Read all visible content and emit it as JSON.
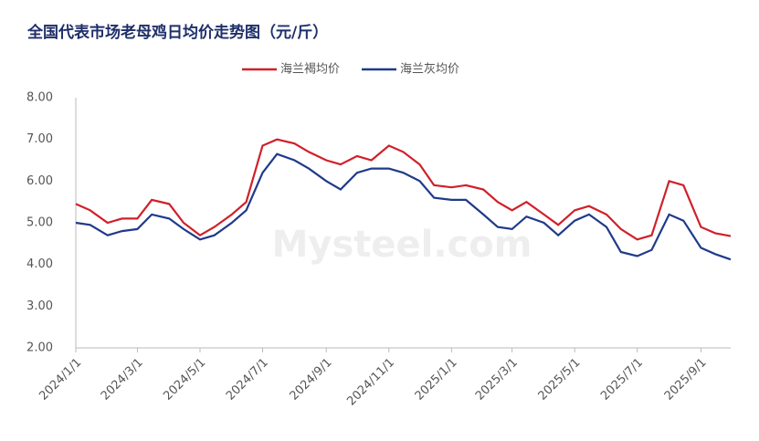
{
  "chart_data": {
    "type": "line",
    "title": "全国代表市场老母鸡日均价走势图（元/斤）",
    "watermark": "Mysteel.com",
    "x": [
      "2024/1/1",
      "2024/1/15",
      "2024/2/1",
      "2024/2/15",
      "2024/3/1",
      "2024/3/15",
      "2024/4/1",
      "2024/4/15",
      "2024/5/1",
      "2024/5/15",
      "2024/6/1",
      "2024/6/15",
      "2024/7/1",
      "2024/7/15",
      "2024/8/1",
      "2024/8/15",
      "2024/9/1",
      "2024/9/15",
      "2024/10/1",
      "2024/10/15",
      "2024/11/1",
      "2024/11/15",
      "2024/12/1",
      "2024/12/15",
      "2025/1/1",
      "2025/1/15",
      "2025/2/1",
      "2025/2/15",
      "2025/3/1",
      "2025/3/15",
      "2025/4/1",
      "2025/4/15",
      "2025/5/1",
      "2025/5/15",
      "2025/6/1",
      "2025/6/15",
      "2025/7/1",
      "2025/7/15",
      "2025/8/1",
      "2025/8/15",
      "2025/9/1",
      "2025/9/15",
      "2025/9/30"
    ],
    "series": [
      {
        "name": "海兰褐均价",
        "color": "#d0202a",
        "values": [
          5.45,
          5.3,
          5.0,
          5.1,
          5.1,
          5.55,
          5.45,
          5.0,
          4.7,
          4.9,
          5.2,
          5.5,
          6.85,
          7.0,
          6.9,
          6.7,
          6.5,
          6.4,
          6.6,
          6.5,
          6.85,
          6.7,
          6.4,
          5.9,
          5.85,
          5.9,
          5.8,
          5.5,
          5.3,
          5.5,
          5.2,
          4.95,
          5.3,
          5.4,
          5.2,
          4.85,
          4.6,
          4.7,
          6.0,
          5.9,
          4.9,
          4.75,
          4.68
        ]
      },
      {
        "name": "海兰灰均价",
        "color": "#1f3a8a",
        "values": [
          5.0,
          4.95,
          4.7,
          4.8,
          4.85,
          5.2,
          5.1,
          4.85,
          4.6,
          4.7,
          5.0,
          5.3,
          6.2,
          6.65,
          6.5,
          6.3,
          6.0,
          5.8,
          6.2,
          6.3,
          6.3,
          6.2,
          6.0,
          5.6,
          5.55,
          5.55,
          5.2,
          4.9,
          4.85,
          5.15,
          5.0,
          4.7,
          5.05,
          5.2,
          4.9,
          4.3,
          4.2,
          4.35,
          5.2,
          5.05,
          4.4,
          4.25,
          4.12
        ]
      }
    ],
    "xlim": [
      "2024/1/1",
      "2025/9/30"
    ],
    "xticks": [
      "2024/1/1",
      "2024/3/1",
      "2024/5/1",
      "2024/7/1",
      "2024/9/1",
      "2024/11/1",
      "2025/1/1",
      "2025/3/1",
      "2025/5/1",
      "2025/7/1",
      "2025/9/1"
    ],
    "ylim": [
      2,
      8
    ],
    "yticks": [
      {
        "value": 2,
        "label": "2.00"
      },
      {
        "value": 3,
        "label": "3.00"
      },
      {
        "value": 4,
        "label": "4.00"
      },
      {
        "value": 5,
        "label": "5.00"
      },
      {
        "value": 6,
        "label": "6.00"
      },
      {
        "value": 7,
        "label": "7.00"
      },
      {
        "value": 8,
        "label": "8.00"
      }
    ]
  }
}
